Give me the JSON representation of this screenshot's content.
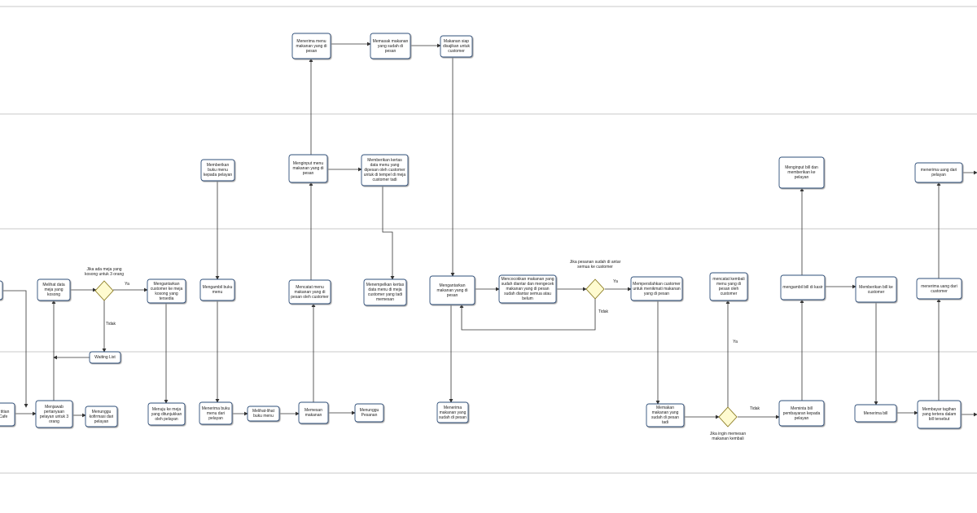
{
  "nodes": [
    {
      "label": "Menerima  menu makanan yang di pesan"
    },
    {
      "label": "Memasak makanan yang sudah di pesan"
    },
    {
      "label": "Makanan siap disajikan untuk customer"
    },
    {
      "label": "Memberikan buku menu kepada pelayan"
    },
    {
      "label": "Menginput menu makanan yang di pesan"
    },
    {
      "label": "Memberikan kertas data menu yang dipesan oleh customer untuk di tempel di meja customer tadi"
    },
    {
      "label": "Menginput bill dan memberikan ke pelayan"
    },
    {
      "label": "menerima uang dari pelayan"
    },
    {
      "label": ""
    },
    {
      "label": "Melihat data meja yang kosong"
    },
    {
      "label": "Mengantarkan customer ke meja kosong yang tersedia"
    },
    {
      "label": "Mengambil buku menu"
    },
    {
      "label": "Mencatat menu makanan yang di pesan oleh customer"
    },
    {
      "label": "Menempelkan kertas data menu di meja customer yang tadi memesan"
    },
    {
      "label": "Mengantarkan makanan yang di pesan"
    },
    {
      "label": "Mencocokkan makanan yang sudah diantar dan mengecek makanan yang di pesan sudah diantar semua atau belum"
    },
    {
      "label": "Mempersilahkan customer untuk menikmati makanan yang di pesan"
    },
    {
      "label": "mencatat kembali menu yang di pesan oleh customer"
    },
    {
      "label": "mengambil bill di kasir"
    },
    {
      "label": "Memberikan bill ke customer"
    },
    {
      "label": "menerima uang  dari customer"
    },
    {
      "label": "Waiting List"
    },
    {
      "label": "n titian Cafe"
    },
    {
      "label": "Menjawab pertanyaan pelayan untuk 3 orang"
    },
    {
      "label": "Menunggu kofirmasi dari pelayan"
    },
    {
      "label": "Menuju ke meja yang ditunjukkan oleh pelayan"
    },
    {
      "label": "Menerima buku menu dari pelayan"
    },
    {
      "label": "Melihat-lihat buku menu"
    },
    {
      "label": "Memesan makanan"
    },
    {
      "label": "Menunggu Pesanan"
    },
    {
      "label": "Menerima makanan yang sudah di pesan"
    },
    {
      "label": "Memakan makanan yang sudah di pesan tadi"
    },
    {
      "label": "Meminta bill pembayaran kepada pelayan"
    },
    {
      "label": "Menerima bill"
    },
    {
      "label": "Membayar tagihan yang tertera dalam bill tersebut"
    }
  ],
  "gateways": [
    {
      "label": "Jika ada meja yang kosong untuk 3 orang"
    },
    {
      "label": "Jika pesanan sudah di antar semua ke customer"
    },
    {
      "label": "Jika ingin memesan makanan kembali"
    }
  ],
  "edge_labels": [
    "Ya",
    "Tidak",
    "Ya",
    "Tidak",
    "Ya",
    "Tidak"
  ]
}
